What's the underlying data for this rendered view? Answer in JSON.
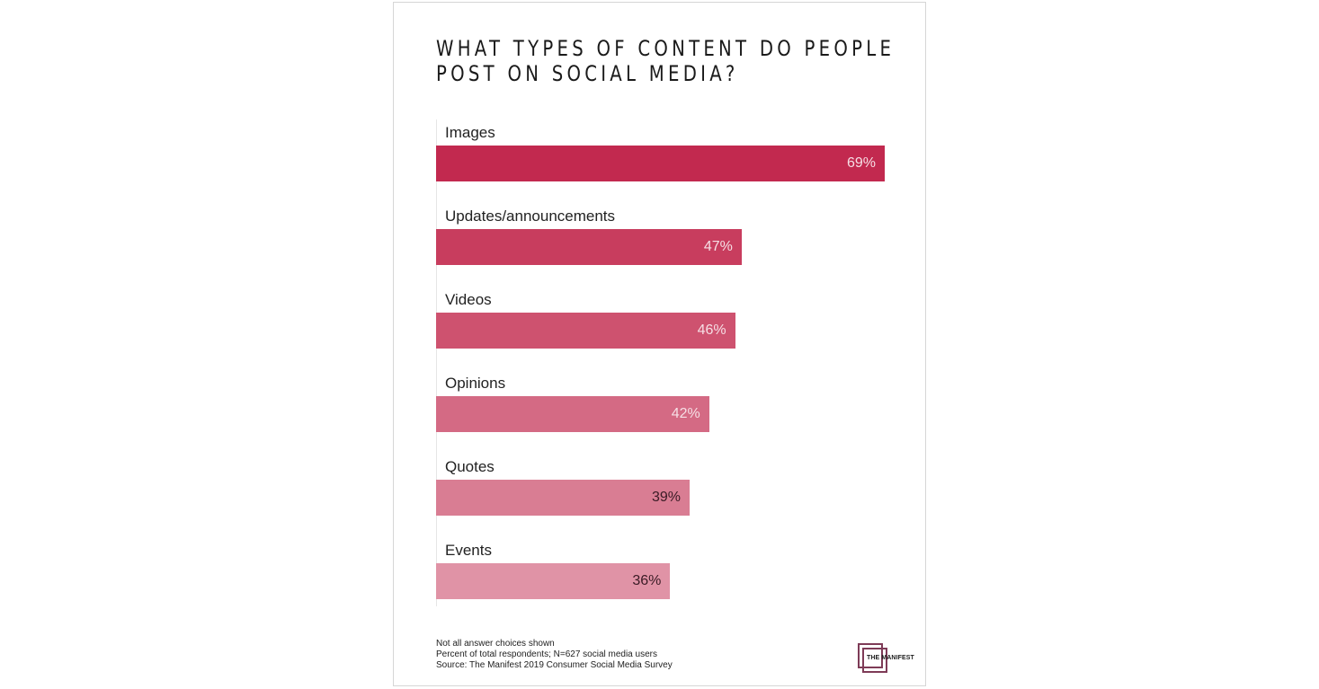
{
  "title_lines": [
    "WHAT TYPES OF CONTENT DO PEOPLE",
    "POST ON SOCIAL MEDIA?"
  ],
  "bars": [
    {
      "label": "Images",
      "value": 69,
      "value_label": "69%",
      "color": "#c2294f",
      "text_color": "#f6dfe5"
    },
    {
      "label": "Updates/announcements",
      "value": 47,
      "value_label": "47%",
      "color": "#c83d5e",
      "text_color": "#f6dfe5"
    },
    {
      "label": "Videos",
      "value": 46,
      "value_label": "46%",
      "color": "#ce526f",
      "text_color": "#f6dfe5"
    },
    {
      "label": "Opinions",
      "value": 42,
      "value_label": "42%",
      "color": "#d46a84",
      "text_color": "#f6dfe5"
    },
    {
      "label": "Quotes",
      "value": 39,
      "value_label": "39%",
      "color": "#d97d93",
      "text_color": "#3a1b25"
    },
    {
      "label": "Events",
      "value": 36,
      "value_label": "36%",
      "color": "#e093a6",
      "text_color": "#3a1b25"
    }
  ],
  "footnotes": [
    "Not all answer choices shown",
    "Percent of total respondents; N=627 social media users",
    "Source: The Manifest 2019 Consumer Social Media Survey"
  ],
  "logo": {
    "text": "THE MANIFEST",
    "color": "#7e3b57"
  },
  "chart_data": {
    "type": "bar",
    "orientation": "horizontal",
    "title": "What types of content do people post on social media?",
    "categories": [
      "Images",
      "Updates/announcements",
      "Videos",
      "Opinions",
      "Quotes",
      "Events"
    ],
    "values": [
      69,
      47,
      46,
      42,
      39,
      36
    ],
    "value_labels": [
      "69%",
      "47%",
      "46%",
      "42%",
      "39%",
      "36%"
    ],
    "xlabel": "",
    "ylabel": "",
    "unit": "%",
    "xlim": [
      0,
      69
    ],
    "grid": false,
    "legend": null,
    "annotations": [
      "Not all answer choices shown",
      "Percent of total respondents; N=627 social media users",
      "Source: The Manifest 2019 Consumer Social Media Survey"
    ]
  }
}
